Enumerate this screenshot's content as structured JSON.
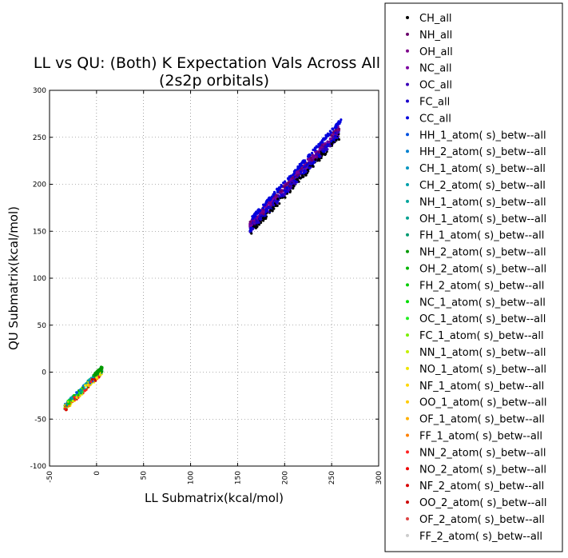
{
  "chart_data": {
    "type": "scatter",
    "title": "LL vs QU: (Both) K Expectation Vals Across All S",
    "subtitle": "(2s2p orbitals)",
    "xlabel": "LL Submatrix(kcal/mol)",
    "ylabel": "QU Submatrix(kcal/mol)",
    "xlim": [
      -50,
      300
    ],
    "ylim": [
      -100,
      300
    ],
    "xticks": [
      -50,
      0,
      50,
      100,
      150,
      200,
      250,
      300
    ],
    "yticks": [
      -100,
      -50,
      0,
      50,
      100,
      150,
      200,
      250,
      300
    ],
    "grid": true,
    "legend_position": "right, outside plot",
    "series": [
      {
        "name": "CH_all",
        "color": "#000000"
      },
      {
        "name": "NH_all",
        "color": "#6a006a"
      },
      {
        "name": "OH_all",
        "color": "#7d008a"
      },
      {
        "name": "NC_all",
        "color": "#7a00a0"
      },
      {
        "name": "OC_all",
        "color": "#3a00b8"
      },
      {
        "name": "FC_all",
        "color": "#1a00cc"
      },
      {
        "name": "CC_all",
        "color": "#0000dd"
      },
      {
        "name": "HH_1_atom( s)_betw--all",
        "color": "#0050e0"
      },
      {
        "name": "HH_2_atom( s)_betw--all",
        "color": "#0080d0"
      },
      {
        "name": "CH_1_atom( s)_betw--all",
        "color": "#0095c0"
      },
      {
        "name": "CH_2_atom( s)_betw--all",
        "color": "#00a0aa"
      },
      {
        "name": "NH_1_atom( s)_betw--all",
        "color": "#00a49c"
      },
      {
        "name": "OH_1_atom( s)_betw--all",
        "color": "#00a090"
      },
      {
        "name": "FH_1_atom( s)_betw--all",
        "color": "#009a70"
      },
      {
        "name": "NH_2_atom( s)_betw--all",
        "color": "#009900"
      },
      {
        "name": "OH_2_atom( s)_betw--all",
        "color": "#00b400"
      },
      {
        "name": "FH_2_atom( s)_betw--all",
        "color": "#00cc00"
      },
      {
        "name": "NC_1_atom( s)_betw--all",
        "color": "#00dd00"
      },
      {
        "name": "OC_1_atom( s)_betw--all",
        "color": "#22ee22"
      },
      {
        "name": "FC_1_atom( s)_betw--all",
        "color": "#77f000"
      },
      {
        "name": "NN_1_atom( s)_betw--all",
        "color": "#c4f000"
      },
      {
        "name": "NO_1_atom( s)_betw--all",
        "color": "#eee400"
      },
      {
        "name": "NF_1_atom( s)_betw--all",
        "color": "#ffd800"
      },
      {
        "name": "OO_1_atom( s)_betw--all",
        "color": "#ffcc00"
      },
      {
        "name": "OF_1_atom( s)_betw--all",
        "color": "#ffb000"
      },
      {
        "name": "FF_1_atom( s)_betw--all",
        "color": "#ff8000"
      },
      {
        "name": "NN_2_atom( s)_betw--all",
        "color": "#ff2020"
      },
      {
        "name": "NO_2_atom( s)_betw--all",
        "color": "#ee0000"
      },
      {
        "name": "NF_2_atom( s)_betw--all",
        "color": "#d80000"
      },
      {
        "name": "OO_2_atom( s)_betw--all",
        "color": "#cc0000"
      },
      {
        "name": "OF_2_atom( s)_betw--all",
        "color": "#dd4444"
      },
      {
        "name": "FF_2_atom( s)_betw--all",
        "color": "#cccccc"
      }
    ],
    "clusters": [
      {
        "group": "all",
        "x_range": [
          163,
          260
        ],
        "y_range": [
          150,
          275
        ],
        "approx_relation": "y ≈ 1.08x - 24",
        "sample_points": [
          [
            163,
            152
          ],
          [
            170,
            160
          ],
          [
            180,
            172
          ],
          [
            190,
            184
          ],
          [
            200,
            196
          ],
          [
            210,
            207
          ],
          [
            220,
            218
          ],
          [
            230,
            230
          ],
          [
            240,
            242
          ],
          [
            250,
            254
          ],
          [
            258,
            268
          ]
        ]
      },
      {
        "group": "betw",
        "x_range": [
          -35,
          7
        ],
        "y_range": [
          -40,
          4
        ],
        "approx_relation": "y ≈ x - 3",
        "sample_points": [
          [
            -33,
            -38
          ],
          [
            -25,
            -29
          ],
          [
            -20,
            -23
          ],
          [
            -15,
            -18
          ],
          [
            -10,
            -13
          ],
          [
            -5,
            -8
          ],
          [
            0,
            -2
          ],
          [
            5,
            3
          ]
        ]
      }
    ]
  }
}
